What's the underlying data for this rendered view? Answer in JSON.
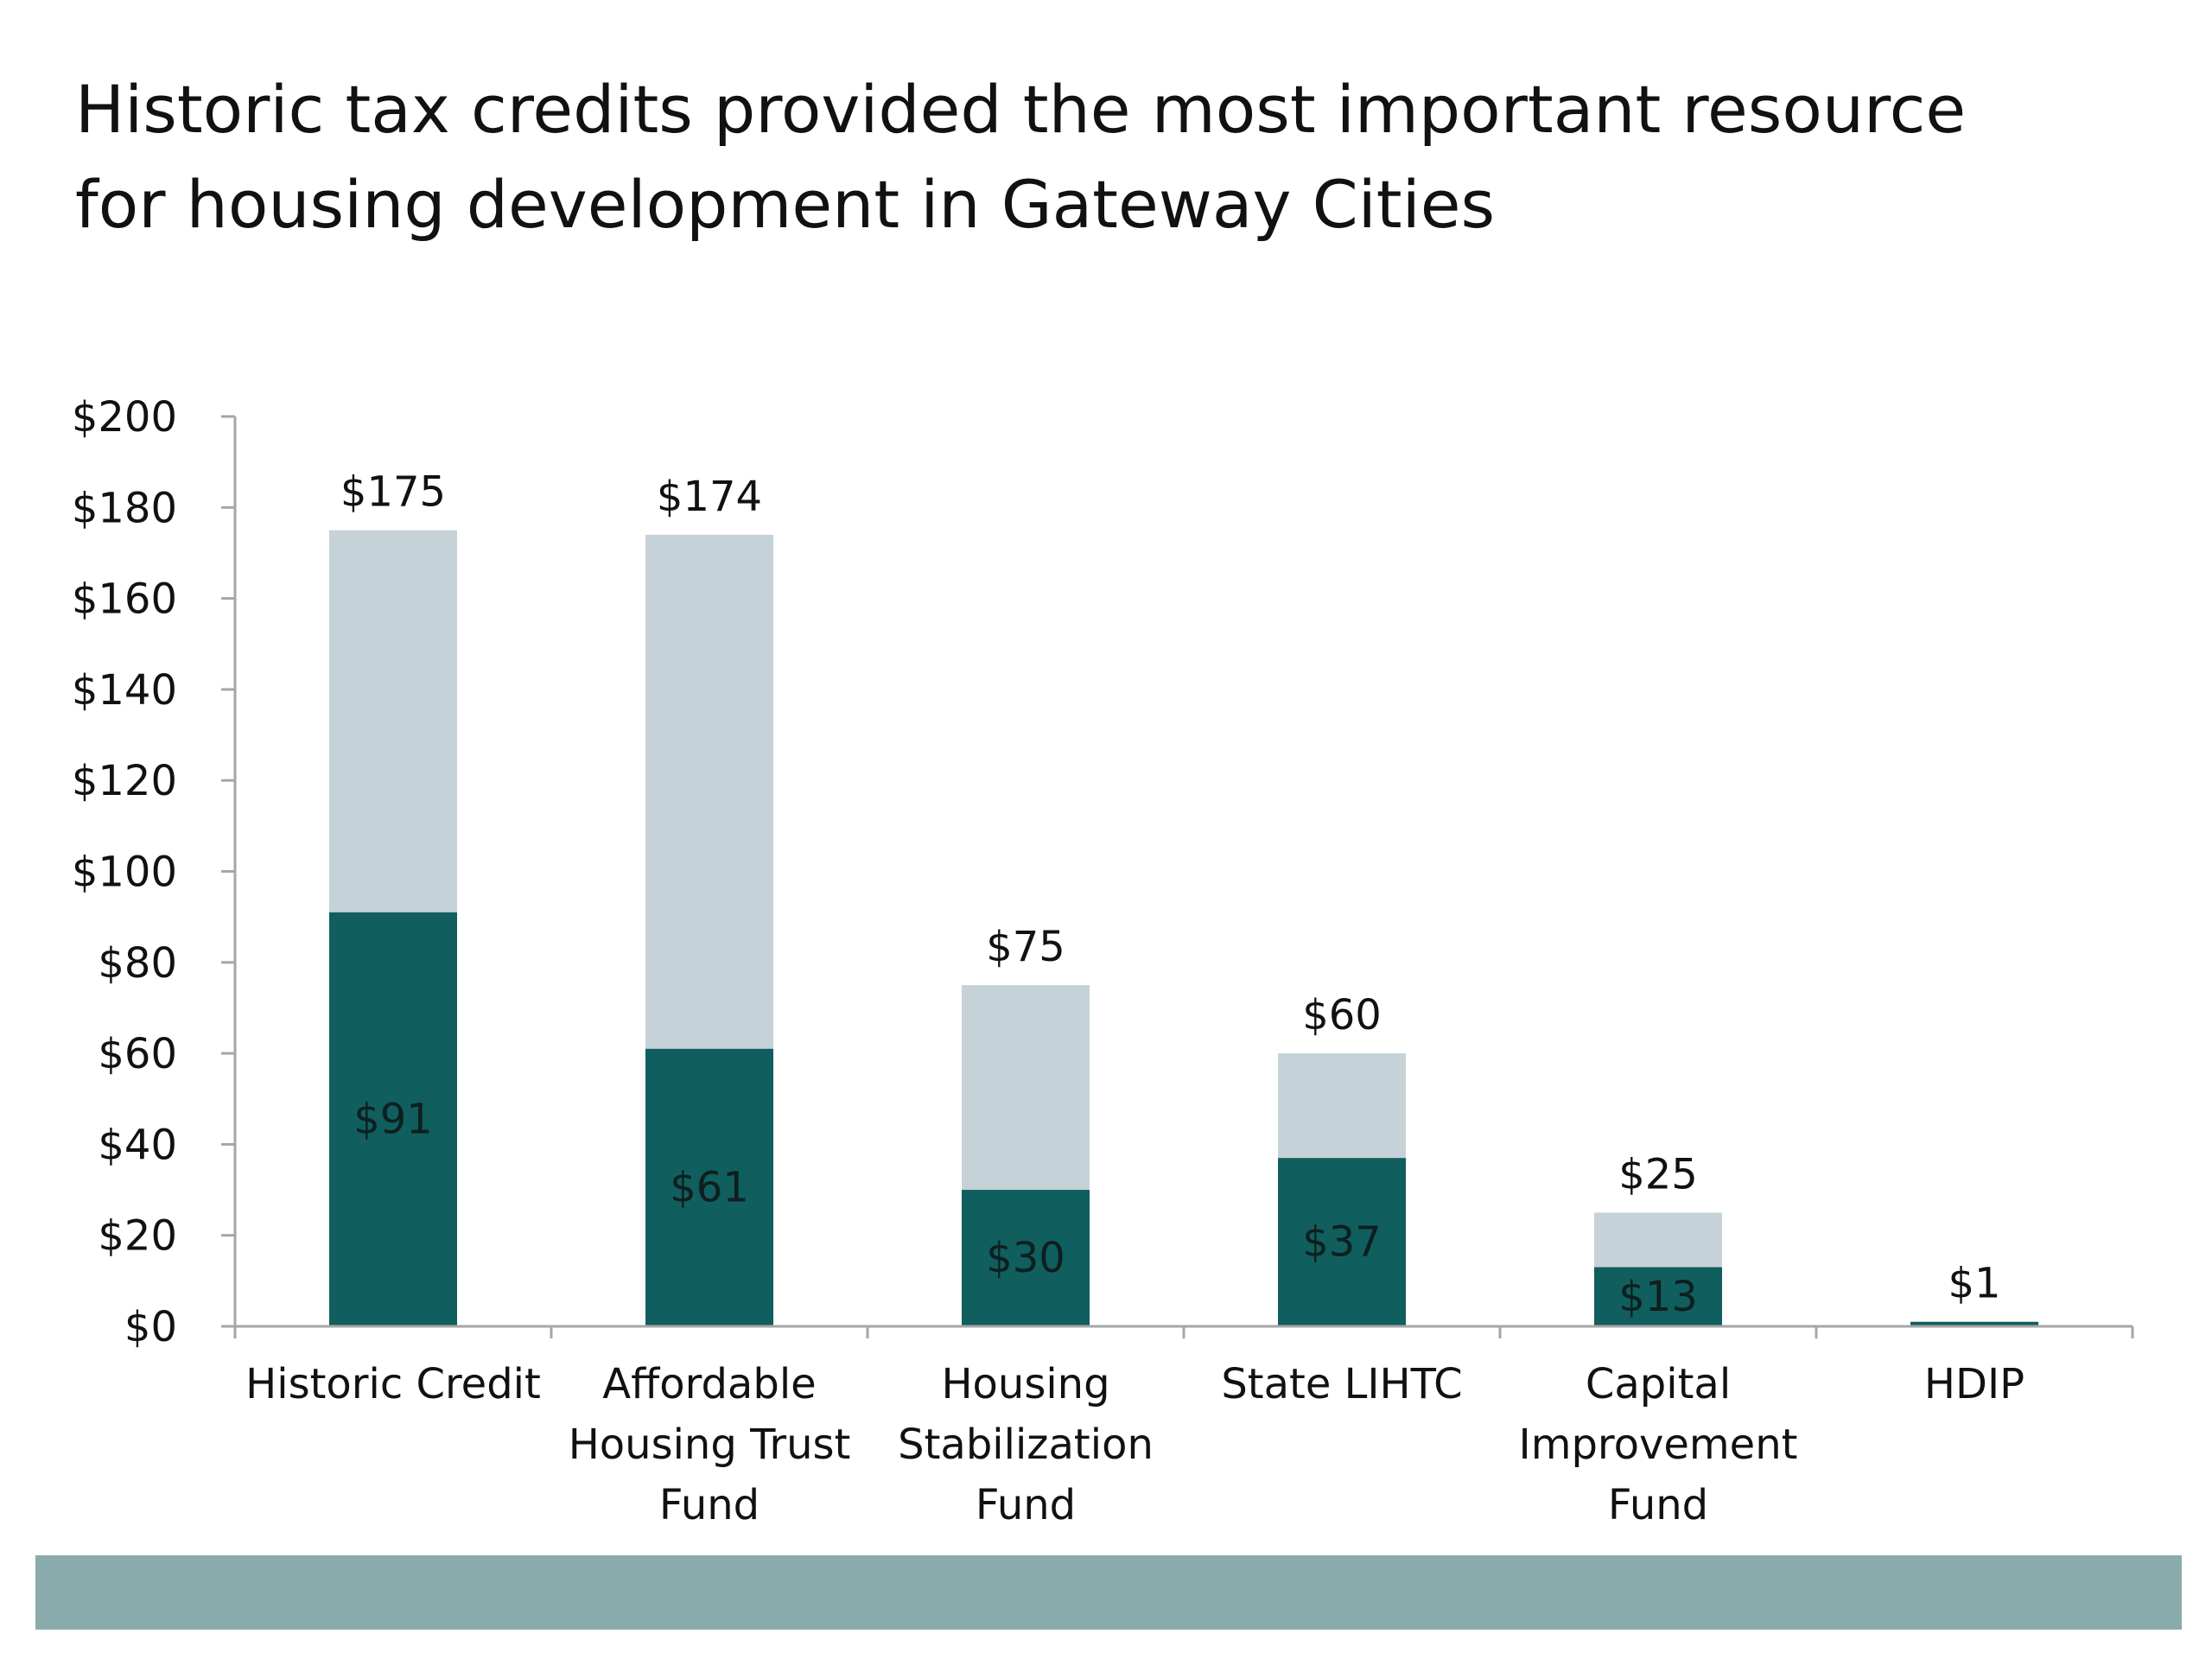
{
  "slide": {
    "title_lines": [
      "Historic tax credits provided the most important resource",
      "for housing development in Gateway Cities"
    ]
  },
  "colors": {
    "total_segment": "#c5d2d7",
    "base_segment": "#115e5e",
    "axis": "#a6a6a6",
    "footer_bar": "#8aabab",
    "text": "#111111"
  },
  "chart_data": {
    "type": "bar",
    "stacked": true,
    "categories": [
      [
        "Historic Credit"
      ],
      [
        "Affordable",
        "Housing Trust",
        "Fund"
      ],
      [
        "Housing",
        "Stabilization",
        "Fund"
      ],
      [
        "State LIHTC"
      ],
      [
        "Capital",
        "Improvement",
        "Fund"
      ],
      [
        "HDIP"
      ]
    ],
    "totals": [
      175,
      174,
      75,
      60,
      25,
      1
    ],
    "total_labels": [
      "$175",
      "$174",
      "$75",
      "$60",
      "$25",
      "$1"
    ],
    "base_values": [
      91,
      61,
      30,
      37,
      13,
      null
    ],
    "base_labels": [
      "$91",
      "$61",
      "$30",
      "$37",
      "$13",
      ""
    ],
    "yticks": [
      0,
      20,
      40,
      60,
      80,
      100,
      120,
      140,
      160,
      180,
      200
    ],
    "ytick_labels": [
      "$0",
      "$20",
      "$40",
      "$60",
      "$80",
      "$100",
      "$120",
      "$140",
      "$160",
      "$180",
      "$200"
    ],
    "ylim": [
      0,
      200
    ],
    "grid": false,
    "legend": "none"
  }
}
